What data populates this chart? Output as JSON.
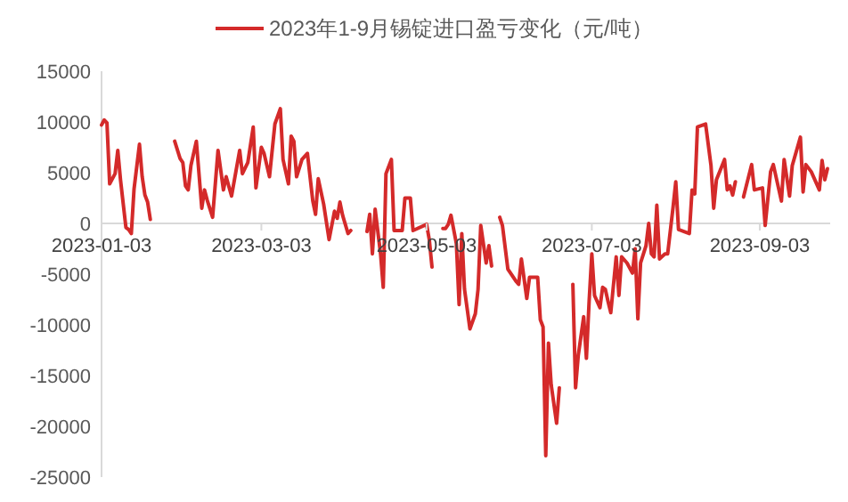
{
  "chart_data": {
    "type": "line",
    "series": [
      {
        "name": "2023年1-9月锡锭进口盈亏变化（元/吨）",
        "color": "#d42a2a",
        "x": [
          "2023-01-03",
          "2023-01-04",
          "2023-01-05",
          "2023-01-06",
          "2023-01-08",
          "2023-01-09",
          "2023-01-10",
          "2023-01-12",
          "2023-01-13",
          "2023-01-14",
          "2023-01-15",
          "2023-01-17",
          "2023-01-18",
          "2023-01-19",
          "2023-01-20",
          "2023-01-21"
        ],
        "values": [
          9700,
          10200,
          9900,
          3900,
          4900,
          7200,
          4300,
          -400,
          -600,
          -1000,
          3400,
          7800,
          4600,
          2800,
          2100,
          400
        ]
      },
      {
        "color": "#d42a2a",
        "x": [
          "2023-01-30",
          "2023-02-01",
          "2023-02-02",
          "2023-02-03",
          "2023-02-04",
          "2023-02-05",
          "2023-02-07",
          "2023-02-09",
          "2023-02-10",
          "2023-02-11",
          "2023-02-13",
          "2023-02-15",
          "2023-02-17",
          "2023-02-18",
          "2023-02-20",
          "2023-02-23",
          "2023-02-24",
          "2023-02-26",
          "2023-02-28",
          "2023-03-01",
          "2023-03-03",
          "2023-03-04",
          "2023-03-06",
          "2023-03-08",
          "2023-03-10",
          "2023-03-11",
          "2023-03-12",
          "2023-03-13",
          "2023-03-14",
          "2023-03-15",
          "2023-03-16",
          "2023-03-18",
          "2023-03-20",
          "2023-03-22",
          "2023-03-23",
          "2023-03-24",
          "2023-03-26",
          "2023-03-28",
          "2023-03-30",
          "2023-03-31",
          "2023-04-01",
          "2023-04-02",
          "2023-04-04",
          "2023-04-05"
        ],
        "values": [
          8100,
          6400,
          6000,
          3700,
          3300,
          5700,
          8100,
          1500,
          3300,
          2300,
          600,
          7200,
          3300,
          4600,
          2700,
          7200,
          4900,
          6000,
          9500,
          3500,
          7500,
          6900,
          4600,
          9800,
          11300,
          6300,
          5100,
          3900,
          8600,
          8100,
          4600,
          6300,
          6900,
          2200,
          900,
          4400,
          1900,
          -1600,
          1200,
          500,
          2100,
          800,
          -1000,
          -700
        ]
      },
      {
        "color": "#d42a2a",
        "x": [
          "2023-04-11",
          "2023-04-12",
          "2023-04-13",
          "2023-04-14",
          "2023-04-16",
          "2023-04-17",
          "2023-04-18",
          "2023-04-20",
          "2023-04-21",
          "2023-04-24",
          "2023-04-25",
          "2023-04-27",
          "2023-04-28",
          "2023-05-03",
          "2023-05-04",
          "2023-05-05"
        ],
        "values": [
          -800,
          900,
          -3000,
          1400,
          -3000,
          -6300,
          4900,
          6300,
          -700,
          -700,
          2500,
          2500,
          -700,
          -100,
          -1600,
          -4300
        ]
      },
      {
        "color": "#d42a2a",
        "x": [
          "2023-05-09",
          "2023-05-10",
          "2023-05-11",
          "2023-05-12",
          "2023-05-14",
          "2023-05-15",
          "2023-05-16",
          "2023-05-17",
          "2023-05-19",
          "2023-05-21",
          "2023-05-22",
          "2023-05-23",
          "2023-05-25",
          "2023-05-26",
          "2023-05-27"
        ],
        "values": [
          -500,
          -500,
          -100,
          800,
          -2000,
          -8000,
          -1000,
          -6500,
          -10400,
          -8900,
          -6500,
          -200,
          -3900,
          -2200,
          -4200
        ]
      },
      {
        "color": "#d42a2a",
        "x": [
          "2023-05-30",
          "2023-05-31",
          "2023-06-02",
          "2023-06-05",
          "2023-06-06",
          "2023-06-07",
          "2023-06-09",
          "2023-06-10",
          "2023-06-13",
          "2023-06-14",
          "2023-06-15",
          "2023-06-16",
          "2023-06-17",
          "2023-06-18",
          "2023-06-20",
          "2023-06-21"
        ],
        "values": [
          600,
          -200,
          -4500,
          -5700,
          -6000,
          -3500,
          -7400,
          -5300,
          -5300,
          -9500,
          -10200,
          -22900,
          -11800,
          -15900,
          -19700,
          -16200
        ]
      },
      {
        "color": "#d42a2a",
        "x": [
          "2023-06-26",
          "2023-06-27",
          "2023-06-28",
          "2023-06-30",
          "2023-07-01",
          "2023-07-02",
          "2023-07-03",
          "2023-07-04",
          "2023-07-06",
          "2023-07-07",
          "2023-07-08",
          "2023-07-09",
          "2023-07-10",
          "2023-07-12",
          "2023-07-13",
          "2023-07-14",
          "2023-07-16",
          "2023-07-18",
          "2023-07-19",
          "2023-07-20",
          "2023-07-21",
          "2023-07-23",
          "2023-07-24",
          "2023-07-25",
          "2023-07-26",
          "2023-07-27",
          "2023-07-28",
          "2023-07-30",
          "2023-07-31",
          "2023-08-02",
          "2023-08-03",
          "2023-08-04",
          "2023-08-06",
          "2023-08-08",
          "2023-08-09",
          "2023-08-10",
          "2023-08-11",
          "2023-08-14",
          "2023-08-16",
          "2023-08-17",
          "2023-08-18",
          "2023-08-21",
          "2023-08-22",
          "2023-08-23",
          "2023-08-24",
          "2023-08-25"
        ],
        "values": [
          -6000,
          -16200,
          -13000,
          -9200,
          -13300,
          -7700,
          -3000,
          -7100,
          -8300,
          -6300,
          -6500,
          -7700,
          -8800,
          -3300,
          -7100,
          -3300,
          -3900,
          -4900,
          -2500,
          -9400,
          -3900,
          -2200,
          0,
          -3000,
          -3300,
          1800,
          -3500,
          -3000,
          -3000,
          1600,
          4100,
          -600,
          -800,
          -1000,
          3300,
          2900,
          9500,
          9800,
          5700,
          1500,
          4300,
          6300,
          3300,
          3700,
          2800,
          4100
        ]
      },
      {
        "color": "#d42a2a",
        "x": [
          "2023-08-28",
          "2023-08-31",
          "2023-09-01",
          "2023-09-04",
          "2023-09-05",
          "2023-09-07",
          "2023-09-08",
          "2023-09-11",
          "2023-09-12",
          "2023-09-14",
          "2023-09-15",
          "2023-09-18",
          "2023-09-19",
          "2023-09-20",
          "2023-09-22",
          "2023-09-25",
          "2023-09-26",
          "2023-09-27",
          "2023-09-28"
        ],
        "values": [
          2600,
          5800,
          3300,
          3500,
          -200,
          5100,
          5800,
          2200,
          6300,
          2700,
          5700,
          8500,
          3100,
          5800,
          5100,
          3300,
          6200,
          4300,
          5400
        ]
      }
    ],
    "xlim": [
      "2023-01-03",
      "2023-09-29"
    ],
    "xticks": [
      "2023-01-03",
      "2023-03-03",
      "2023-05-03",
      "2023-07-03",
      "2023-09-03"
    ],
    "ylim": [
      -25000,
      15000
    ],
    "yticks": [
      -25000,
      -20000,
      -15000,
      -10000,
      -5000,
      0,
      5000,
      10000,
      15000
    ],
    "legend": "top"
  }
}
